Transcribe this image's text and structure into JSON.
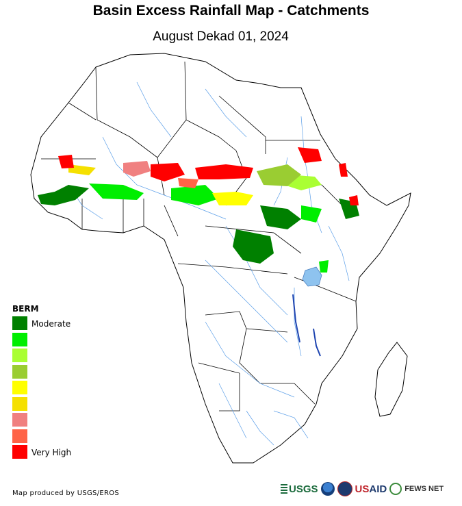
{
  "header": {
    "title": "Basin Excess Rainfall Map - Catchments",
    "subtitle": "August Dekad 01, 2024"
  },
  "legend": {
    "title": "BERM",
    "items": [
      {
        "label": "Moderate",
        "color": "#008000"
      },
      {
        "label": "",
        "color": "#00ee00"
      },
      {
        "label": "",
        "color": "#aaff33"
      },
      {
        "label": "",
        "color": "#9acd32"
      },
      {
        "label": "",
        "color": "#ffff00"
      },
      {
        "label": "",
        "color": "#f5e000"
      },
      {
        "label": "",
        "color": "#f08080"
      },
      {
        "label": "",
        "color": "#ff6347"
      },
      {
        "label": "Very High",
        "color": "#ff0000"
      }
    ]
  },
  "footer": {
    "credit": "Map produced by USGS/EROS",
    "logos": {
      "usgs": "USGS",
      "usaid_prefix": "US",
      "usaid_suffix": "AID",
      "fews": "FEWS NET"
    }
  },
  "colors": {
    "land": "#ffffff",
    "border": "#000000",
    "river": "#5a9ee8",
    "lake": "#8ec3ef"
  }
}
